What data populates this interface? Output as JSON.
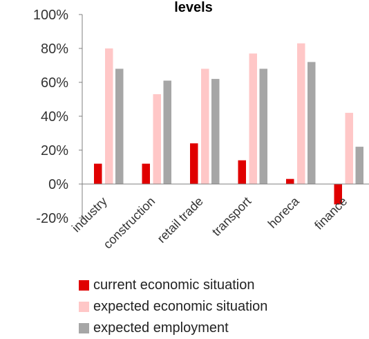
{
  "chart_data": {
    "type": "bar",
    "title": "levels",
    "categories": [
      "industry",
      "construction",
      "retail trade",
      "transport",
      "horeca",
      "finance"
    ],
    "series": [
      {
        "name": "current economic situation",
        "color": "#e00000",
        "values": [
          12,
          12,
          24,
          14,
          3,
          -12
        ]
      },
      {
        "name": "expected economic situation",
        "color": "#ffc7c7",
        "values": [
          80,
          53,
          68,
          77,
          83,
          42
        ]
      },
      {
        "name": "expected employment",
        "color": "#a6a6a6",
        "values": [
          68,
          61,
          62,
          68,
          72,
          22
        ]
      }
    ],
    "yticks": [
      "-20%",
      "0%",
      "20%",
      "40%",
      "60%",
      "80%",
      "100%"
    ],
    "ylim": [
      -20,
      100
    ],
    "grid": false,
    "legend_position": "bottom"
  }
}
